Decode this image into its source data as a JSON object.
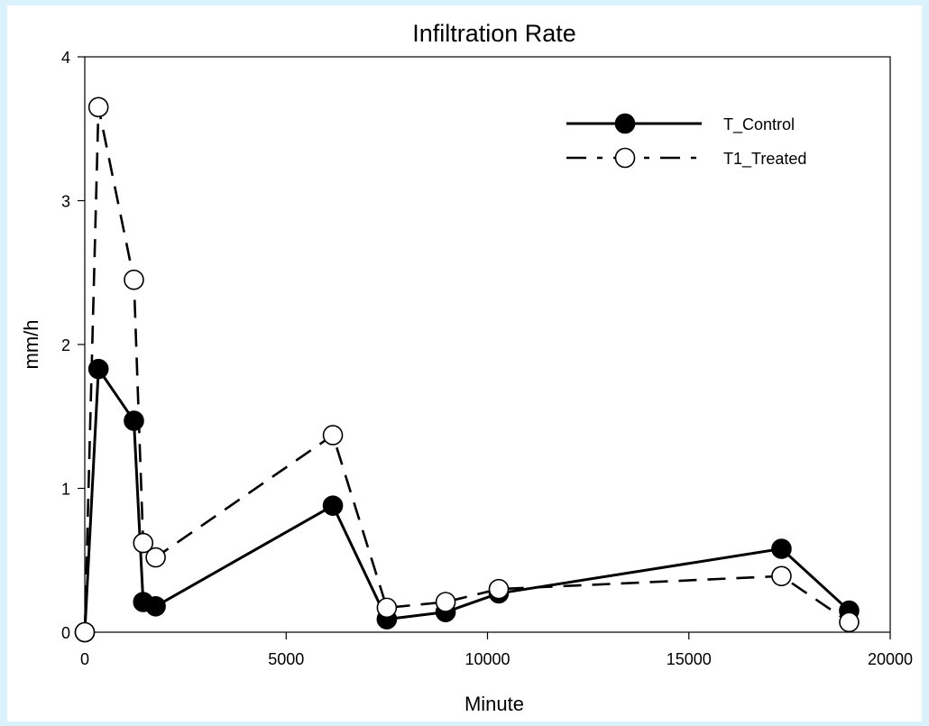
{
  "chart_data": {
    "type": "line",
    "title": "Infiltration Rate",
    "xlabel": "Minute",
    "ylabel": "mm/h",
    "xlim": [
      0,
      20000
    ],
    "ylim": [
      0,
      4
    ],
    "xticks": [
      "0",
      "5000",
      "10000",
      "15000",
      "20000"
    ],
    "yticks": [
      "0",
      "1",
      "2",
      "3",
      "4"
    ],
    "grid": false,
    "legend_position": "top-right",
    "series": [
      {
        "name": "T_Control",
        "marker": "filled-circle",
        "line_style": "solid",
        "color": "#000000",
        "x": [
          0,
          340,
          1220,
          1450,
          1760,
          6160,
          7500,
          8960,
          10280,
          17300,
          18980
        ],
        "y": [
          0,
          1.83,
          1.47,
          0.21,
          0.18,
          0.88,
          0.09,
          0.14,
          0.27,
          0.58,
          0.15
        ]
      },
      {
        "name": "T1_Treated",
        "marker": "open-circle",
        "line_style": "dashed",
        "color": "#000000",
        "x": [
          0,
          340,
          1220,
          1450,
          1760,
          6160,
          7500,
          8960,
          10280,
          17300,
          18980
        ],
        "y": [
          0,
          3.65,
          2.45,
          0.62,
          0.52,
          1.37,
          0.17,
          0.21,
          0.3,
          0.39,
          0.07
        ]
      }
    ]
  }
}
